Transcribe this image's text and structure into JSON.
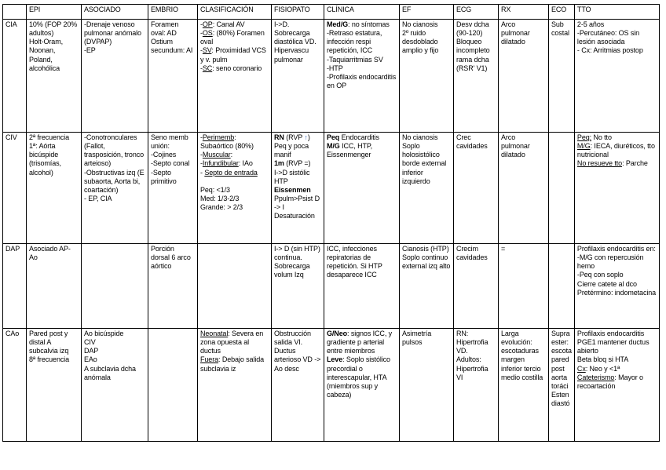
{
  "colors": {
    "text": "#000000",
    "grid": "#000000",
    "background": "#ffffff",
    "arrow_up": "#4472c4"
  },
  "table": {
    "headers": [
      "",
      "EPI",
      "ASOCIADO",
      "EMBRIO",
      "CLASIFICACIÓN",
      "FISIOPATO",
      "CLÍNICA",
      "EF",
      "ECG",
      "RX",
      "ECO",
      "TTO"
    ],
    "column_keys": [
      "epi",
      "asociado",
      "embrio",
      "clasificacion",
      "fisiopato",
      "clinica",
      "ef",
      "ecg",
      "rx",
      "eco",
      "tto"
    ],
    "rows": [
      {
        "label": "CIA",
        "cells": {
          "epi": [
            "10% (FOP 20% adultos)",
            "Holt-Oram, Noonan, Poland, alcohólica"
          ],
          "asociado": [
            "-Drenaje venoso pulmonar anómalo (DVPAP)",
            "-EP"
          ],
          "embrio": [
            "Foramen oval: AD",
            "Ostium secundum: AI"
          ],
          "clasificacion": [
            [
              "-",
              {
                "t": "OP",
                "u": true
              },
              ": Canal AV"
            ],
            [
              "-",
              {
                "t": "OS",
                "u": true
              },
              ": (80%) Foramen oval"
            ],
            [
              "-",
              {
                "t": "SV",
                "u": true
              },
              ": Proximidad VCS y v. pulm"
            ],
            [
              "-",
              {
                "t": "SC",
                "u": true
              },
              ": seno coronario"
            ]
          ],
          "fisiopato": [
            "I->D.",
            "Sobrecarga diastólica VD.",
            "Hipervascu pulmonar"
          ],
          "clinica": [
            [
              {
                "t": "Med/G",
                "b": true
              },
              ": no síntomas"
            ],
            "-Retraso estatura, infección respi repetición, ICC",
            "-Taquiarritmias SV",
            "-HTP",
            "-Profilaxis endocarditis en OP"
          ],
          "ef": [
            "No cianosis",
            "2º ruido desdoblado amplio y fijo"
          ],
          "ecg": [
            "Desv dcha (90-120)",
            "Bloqueo incompleto rama dcha (RSR' V1)"
          ],
          "rx": [
            "Arco pulmonar dilatado"
          ],
          "eco": [
            "Sub costal"
          ],
          "tto": [
            "2-5 años",
            "-Percutáneo: OS sin lesión asociada",
            "- Cx: Arritmias postop"
          ]
        }
      },
      {
        "label": "CIV",
        "cells": {
          "epi": [
            "2ª frecuencia",
            "1ª: Aórta bicúspide (trisomías, alcohol)"
          ],
          "asociado": [
            "-Conotronculares (Fallot, trasposición, tronco arteioso)",
            "-Obstructivas izq (E subaorta, Aorta bi, coartación)",
            "- EP, CIA"
          ],
          "embrio": [
            "Seno memb unión:",
            "-Cojines",
            "-Septo conal",
            "-Septo primitivo"
          ],
          "clasificacion": [
            [
              "-",
              {
                "t": "Perimemb",
                "u": true
              },
              ": Subaórtico (80%)"
            ],
            [
              "-",
              {
                "t": "Muscular",
                "u": true
              },
              ":"
            ],
            [
              "-",
              {
                "t": "Infundibular",
                "u": true
              },
              ": IAo"
            ],
            [
              "- ",
              {
                "t": "Septo de entrada",
                "u": true
              }
            ],
            "",
            "Peq: <1/3",
            "Med: 1/3-2/3",
            "Grande: > 2/3"
          ],
          "fisiopato": [
            [
              {
                "t": "RN",
                "b": true
              },
              " (RVP ",
              {
                "t": "↑",
                "b": true,
                "c": "#4472c4"
              },
              ")"
            ],
            "Peq y poca manif",
            [
              {
                "t": "1m",
                "b": true
              },
              " (RVP =)"
            ],
            "I->D sistólic HTP",
            [
              {
                "t": "Eissenmen",
                "b": true
              }
            ],
            "Ppulm>Psist D -> I",
            "Desaturación"
          ],
          "clinica": [
            [
              {
                "t": "Peq",
                "b": true
              },
              " Endocarditis"
            ],
            [
              {
                "t": "M/G",
                "b": true
              },
              " ICC, HTP, Eissenmenger"
            ]
          ],
          "ef": [
            "No cianosis",
            "Soplo holosistólico borde external inferior izquierdo"
          ],
          "ecg": [
            "Crec cavidades"
          ],
          "rx": [
            "Arco pulmonar dilatado"
          ],
          "eco": [],
          "tto": [
            [
              {
                "t": "Peq:",
                "u": true
              },
              " No tto"
            ],
            [
              {
                "t": "M/G",
                "u": true
              },
              ": IECA, diuréticos, tto nutricional"
            ],
            [
              {
                "t": "No resueve tto",
                "u": true
              },
              ": Parche"
            ]
          ]
        }
      },
      {
        "label": "DAP",
        "cells": {
          "epi": [
            "Asociado AP-Ao"
          ],
          "asociado": [],
          "embrio": [
            "Porción dorsal 6 arco aórtico"
          ],
          "clasificacion": [],
          "fisiopato": [
            "I-> D (sin HTP) continua.",
            "Sobrecarga volum Izq"
          ],
          "clinica": [
            "ICC, infecciones repiratorias de repetición. Si HTP desaparece ICC"
          ],
          "ef": [
            "Cianosis (HTP)",
            "Soplo continuo external izq alto"
          ],
          "ecg": [
            "Crecim cavidades"
          ],
          "rx": [
            "="
          ],
          "eco": [],
          "tto": [
            "Profilaxis endocarditis en:",
            "-M/G con repercusión hemo",
            "-Peq con soplo",
            "Cierre catete al dco",
            "Pretérmino: indometacina"
          ]
        }
      },
      {
        "label": "CAo",
        "cells": {
          "epi": [
            "Pared post y distal A subcalvia izq",
            "8ª frecuencia"
          ],
          "asociado": [
            "Ao bicúspide",
            "CIV",
            "DAP",
            "EAo",
            "A subclavia dcha anómala"
          ],
          "embrio": [],
          "clasificacion": [
            [
              {
                "t": "Neonatal",
                "u": true
              },
              ": Severa en zona opuesta al ductus"
            ],
            [
              {
                "t": "Fuera",
                "u": true
              },
              ": Debajo salida subclavia iz"
            ]
          ],
          "fisiopato": [
            "Obstrucción salida VI.",
            "Ductus arterioso VD -> Ao desc"
          ],
          "clinica": [
            [
              {
                "t": "G/Neo",
                "b": true
              },
              ": signos ICC, y gradiente p arterial entre miembros"
            ],
            [
              {
                "t": "Leve",
                "b": true
              },
              ": Soplo sistólico precordial o interescapular, HTA (miembros sup y cabeza)"
            ]
          ],
          "ef": [
            "Asimetría pulsos"
          ],
          "ecg": [
            "RN: Hipertrofia VD.",
            "Adultos: Hipertrofia VI"
          ],
          "rx": [
            "Larga evolución: escotaduras margen inferior tercio medio costilla"
          ],
          "eco": [
            "Supra ester: escota pared post aorta toráci Esten diastó"
          ],
          "tto": [
            "Profilaxis endocarditis",
            "PGE1 mantener ductus abierto",
            "Beta bloq si HTA",
            [
              {
                "t": "Cx",
                "u": true
              },
              ": Neo y <1ª"
            ],
            [
              {
                "t": "Cateterismo",
                "u": true
              },
              ": Mayor o recoartación"
            ]
          ]
        }
      }
    ]
  }
}
